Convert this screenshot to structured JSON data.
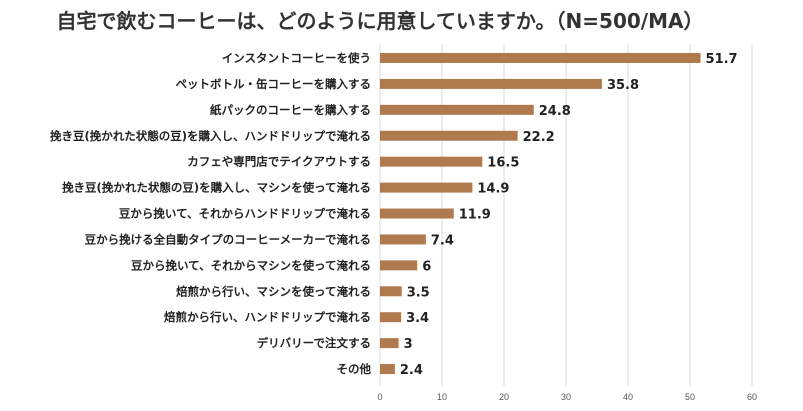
{
  "chart_data": {
    "type": "bar",
    "orientation": "horizontal",
    "title": "自宅で飲むコーヒーは、どのように用意していますか。（N=500/MA）",
    "categories": [
      "インスタントコーヒーを使う",
      "ペットボトル・缶コーヒーを購入する",
      "紙パックのコーヒーを購入する",
      "挽き豆(挽かれた状態の豆)を購入し、ハンドドリップで淹れる",
      "カフェや専門店でテイクアウトする",
      "挽き豆(挽かれた状態の豆)を購入し、マシンを使って淹れる",
      "豆から挽いて、それからハンドドリップで淹れる",
      "豆から挽ける全自動タイプのコーヒーメーカーで淹れる",
      "豆から挽いて、それからマシンを使って淹れる",
      "焙煎から行い、マシンを使って淹れる",
      "焙煎から行い、ハンドドリップで淹れる",
      "デリバリーで注文する",
      "その他"
    ],
    "values": [
      51.7,
      35.8,
      24.8,
      22.2,
      16.5,
      14.9,
      11.9,
      7.4,
      6,
      3.5,
      3.4,
      3,
      2.4
    ],
    "value_labels": [
      "51.7",
      "35.8",
      "24.8",
      "22.2",
      "16.5",
      "14.9",
      "11.9",
      "7.4",
      "6",
      "3.5",
      "3.4",
      "3",
      "2.4"
    ],
    "xlim": [
      0,
      60
    ],
    "xticks": [
      0,
      10,
      20,
      30,
      40,
      50,
      60
    ],
    "xtick_labels": [
      "0",
      "10",
      "20",
      "30",
      "40",
      "50",
      "60"
    ],
    "grid": true,
    "legend": "none",
    "bar_color": "#B07A4F"
  }
}
